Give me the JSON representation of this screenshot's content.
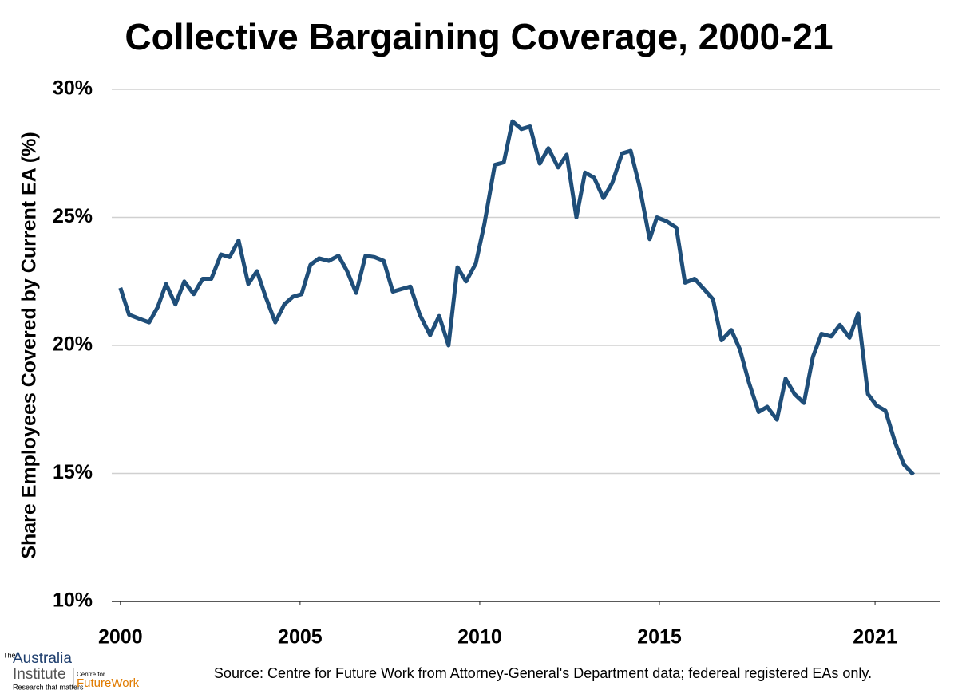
{
  "chart_data": {
    "type": "line",
    "title": "Collective Bargaining Coverage, 2000-21",
    "y_label": "Share Employees Covered by Current EA (%)",
    "source": "Source: Centre for Future Work from Attorney-General's Department data; federeal registered EAs only.",
    "logo": {
      "top": "The",
      "name1": "Australia",
      "name2": "Institute",
      "tagline": "Research that matters",
      "partner_top": "Centre for",
      "partner": "FutureWork"
    },
    "xlim": [
      1999.76,
      2022.82
    ],
    "xticks": [
      2000,
      2005,
      2010,
      2015,
      2021
    ],
    "ylim": [
      10,
      30
    ],
    "yticks": [
      {
        "value": 10,
        "label": "10%"
      },
      {
        "value": 15,
        "label": "15%"
      },
      {
        "value": 20,
        "label": "20%"
      },
      {
        "value": 25,
        "label": "25%"
      },
      {
        "value": 30,
        "label": "30%"
      }
    ],
    "grid": true,
    "series": [
      {
        "name": "Coverage",
        "color": "#1f4e79",
        "x": [
          2000,
          2000.24,
          2000.51,
          2000.8,
          2001.04,
          2001.27,
          2001.53,
          2001.78,
          2002.04,
          2002.29,
          2002.53,
          2002.8,
          2003.04,
          2003.29,
          2003.56,
          2003.8,
          2004.04,
          2004.31,
          2004.56,
          2004.8,
          2005.04,
          2005.29,
          2005.53,
          2005.8,
          2006.07,
          2006.31,
          2006.56,
          2006.82,
          2007.07,
          2007.33,
          2007.58,
          2007.82,
          2008.07,
          2008.33,
          2008.62,
          2008.87,
          2009.13,
          2009.38,
          2009.62,
          2009.89,
          2010.13,
          2010.42,
          2010.67,
          2010.91,
          2011.16,
          2011.4,
          2011.67,
          2011.91,
          2012.18,
          2012.42,
          2012.69,
          2012.93,
          2013.18,
          2013.44,
          2013.69,
          2013.96,
          2014.2,
          2014.44,
          2014.73,
          2014.93,
          2015.2,
          2015.47,
          2015.71,
          2015.98,
          2016.24,
          2016.49,
          2016.73,
          2017,
          2017.24,
          2017.49,
          2017.76,
          2018,
          2018.27,
          2018.51,
          2018.76,
          2019.02,
          2019.27,
          2019.51,
          2019.78,
          2020.02,
          2020.29,
          2020.53,
          2020.8,
          2021.04,
          2021.29,
          2021.56,
          2021.8,
          2022.07
        ],
        "values": [
          22.25,
          21.2,
          21.05,
          20.9,
          21.5,
          22.4,
          21.6,
          22.5,
          22.0,
          22.6,
          22.6,
          23.55,
          23.45,
          24.1,
          22.4,
          22.9,
          21.9,
          20.9,
          21.6,
          21.9,
          22.0,
          23.15,
          23.4,
          23.3,
          23.5,
          22.9,
          22.05,
          23.5,
          23.45,
          23.3,
          22.1,
          22.2,
          22.3,
          21.2,
          20.4,
          21.15,
          20.0,
          23.05,
          22.5,
          23.2,
          24.75,
          27.05,
          27.15,
          28.75,
          28.45,
          28.55,
          27.1,
          27.7,
          26.95,
          27.45,
          25.0,
          26.75,
          26.55,
          25.75,
          26.35,
          27.5,
          27.6,
          26.25,
          24.15,
          25.0,
          24.85,
          24.6,
          22.45,
          22.6,
          22.2,
          21.8,
          20.2,
          20.6,
          19.85,
          18.55,
          17.4,
          17.6,
          17.1,
          18.7,
          18.1,
          17.75,
          19.55,
          20.45,
          20.35,
          20.8,
          20.3,
          21.25,
          18.1,
          17.65,
          17.45,
          16.2,
          15.35,
          14.95
        ]
      }
    ]
  }
}
